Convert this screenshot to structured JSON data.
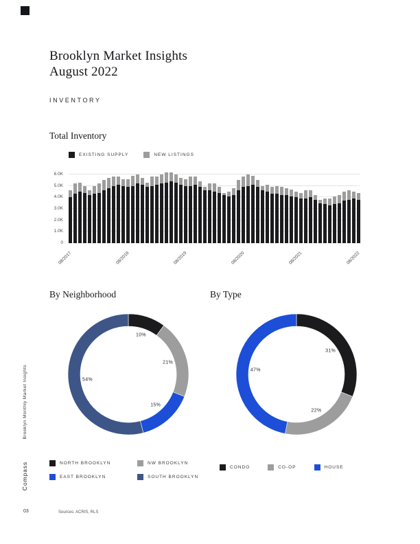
{
  "page": {
    "title_line1": "Brooklyn Market Insights",
    "title_line2": "August 2022",
    "section_label": "INVENTORY",
    "sidebar_text": "Brooklyn Monthly Market Insights",
    "sidebar_brand": "Compass",
    "footer_page": "03",
    "footer_sources": "Sources: ACRIS, RLS"
  },
  "colors": {
    "dark": "#1b1b1e",
    "gray": "#9d9d9d",
    "blue": "#1d4ed8",
    "slate": "#3d5687",
    "grid": "#e3e3e3"
  },
  "chart_data": [
    {
      "type": "bar",
      "title": "Total Inventory",
      "stacked": true,
      "units": "K (thousands of listings)",
      "ylim": [
        0,
        6000
      ],
      "grid": true,
      "legend_position": "top-left",
      "yticks": [
        "0",
        "1.0K",
        "2.0K",
        "3.0K",
        "4.0K",
        "5.0K",
        "6.0K"
      ],
      "xticks_shown": [
        "08/2017",
        "08/2018",
        "08/2019",
        "08/2020",
        "08/2021",
        "08/2022"
      ],
      "xtick_indices": [
        0,
        12,
        24,
        36,
        48,
        60
      ],
      "x": [
        "08/2017",
        "09/2017",
        "10/2017",
        "11/2017",
        "12/2017",
        "01/2018",
        "02/2018",
        "03/2018",
        "04/2018",
        "05/2018",
        "06/2018",
        "07/2018",
        "08/2018",
        "09/2018",
        "10/2018",
        "11/2018",
        "12/2018",
        "01/2019",
        "02/2019",
        "03/2019",
        "04/2019",
        "05/2019",
        "06/2019",
        "07/2019",
        "08/2019",
        "09/2019",
        "10/2019",
        "11/2019",
        "12/2019",
        "01/2020",
        "02/2020",
        "03/2020",
        "04/2020",
        "05/2020",
        "06/2020",
        "07/2020",
        "08/2020",
        "09/2020",
        "10/2020",
        "11/2020",
        "12/2020",
        "01/2021",
        "02/2021",
        "03/2021",
        "04/2021",
        "05/2021",
        "06/2021",
        "07/2021",
        "08/2021",
        "09/2021",
        "10/2021",
        "11/2021",
        "12/2021",
        "01/2022",
        "02/2022",
        "03/2022",
        "04/2022",
        "05/2022",
        "06/2022",
        "07/2022",
        "08/2022"
      ],
      "series": [
        {
          "name": "EXISTING SUPPLY",
          "color": "#1b1b1e",
          "values": [
            4.0,
            4.3,
            4.5,
            4.4,
            4.2,
            4.3,
            4.4,
            4.6,
            4.8,
            5.0,
            5.1,
            5.0,
            4.9,
            5.0,
            5.2,
            5.1,
            4.9,
            5.0,
            5.1,
            5.2,
            5.3,
            5.4,
            5.3,
            5.1,
            5.0,
            5.0,
            5.1,
            4.9,
            4.6,
            4.6,
            4.5,
            4.4,
            4.2,
            4.1,
            4.2,
            4.6,
            4.9,
            5.0,
            5.1,
            4.9,
            4.6,
            4.5,
            4.3,
            4.3,
            4.2,
            4.2,
            4.1,
            4.0,
            3.9,
            3.9,
            4.0,
            3.8,
            3.5,
            3.4,
            3.3,
            3.4,
            3.5,
            3.7,
            3.8,
            3.9,
            3.8
          ]
        },
        {
          "name": "NEW LISTINGS",
          "color": "#9d9d9d",
          "values": [
            0.6,
            0.9,
            0.8,
            0.6,
            0.4,
            0.7,
            0.8,
            0.9,
            0.9,
            0.8,
            0.7,
            0.6,
            0.7,
            0.9,
            0.8,
            0.6,
            0.4,
            0.8,
            0.7,
            0.8,
            0.9,
            0.8,
            0.7,
            0.6,
            0.6,
            0.8,
            0.7,
            0.5,
            0.3,
            0.6,
            0.7,
            0.5,
            0.2,
            0.4,
            0.6,
            0.9,
            0.9,
            1.0,
            0.8,
            0.6,
            0.4,
            0.6,
            0.6,
            0.7,
            0.7,
            0.6,
            0.6,
            0.5,
            0.5,
            0.7,
            0.6,
            0.4,
            0.3,
            0.5,
            0.6,
            0.7,
            0.7,
            0.8,
            0.8,
            0.6,
            0.6
          ]
        }
      ]
    },
    {
      "type": "pie",
      "title": "By Neighborhood",
      "donut": true,
      "labels": [
        "NORTH BROOKLYN",
        "NW BROOKLYN",
        "EAST BROOKLYN",
        "SOUTH BROOKLYN"
      ],
      "values": [
        10,
        21,
        15,
        54
      ],
      "colors": [
        "#1b1b1e",
        "#9d9d9d",
        "#1d4ed8",
        "#3d5687"
      ],
      "legend_position": "bottom"
    },
    {
      "type": "pie",
      "title": "By Type",
      "donut": true,
      "labels": [
        "CONDO",
        "CO-OP",
        "HOUSE"
      ],
      "values": [
        31,
        22,
        47
      ],
      "colors": [
        "#1b1b1e",
        "#9d9d9d",
        "#1d4ed8"
      ],
      "legend_position": "bottom"
    }
  ]
}
